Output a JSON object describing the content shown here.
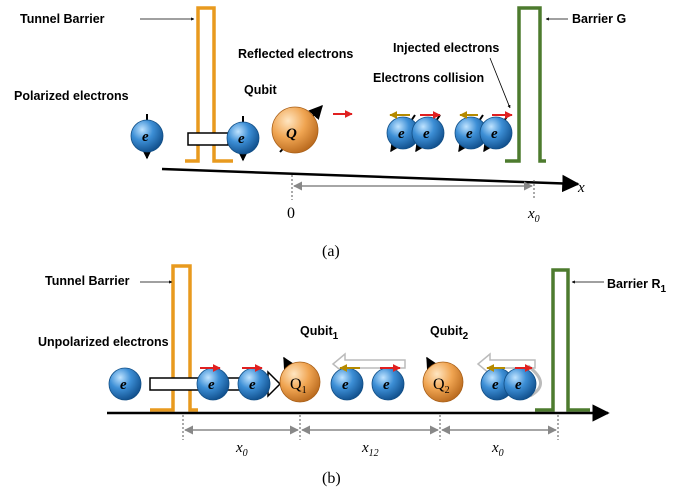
{
  "panel_a": {
    "tunnel_barrier": "Tunnel Barrier",
    "barrier_g": "Barrier G",
    "reflected": "Reflected electrons",
    "injected": "Injected electrons",
    "polarized": "Polarized electrons",
    "qubit": "Qubit",
    "collision": "Electrons collision",
    "electron": "e",
    "qubit_symbol": "Q",
    "axis_label": "x",
    "origin": "0",
    "distance": {
      "symbol": "x",
      "sub": "0"
    },
    "caption": "(a)"
  },
  "panel_b": {
    "tunnel_barrier": "Tunnel Barrier",
    "barrier_r": {
      "text": "Barrier R",
      "sub": "1"
    },
    "unpolarized": "Unpolarized electrons",
    "qubit_1": {
      "text": "Qubit",
      "sub": "1"
    },
    "qubit_2": {
      "text": "Qubit",
      "sub": "2"
    },
    "q1": {
      "text": "Q",
      "sub": "1"
    },
    "q2": {
      "text": "Q",
      "sub": "2"
    },
    "electron": "e",
    "distance_left": {
      "symbol": "x",
      "sub": "0"
    },
    "distance_mid": {
      "symbol": "x",
      "sub": "12"
    },
    "distance_right": {
      "symbol": "x",
      "sub": "0"
    },
    "caption": "(b)"
  }
}
